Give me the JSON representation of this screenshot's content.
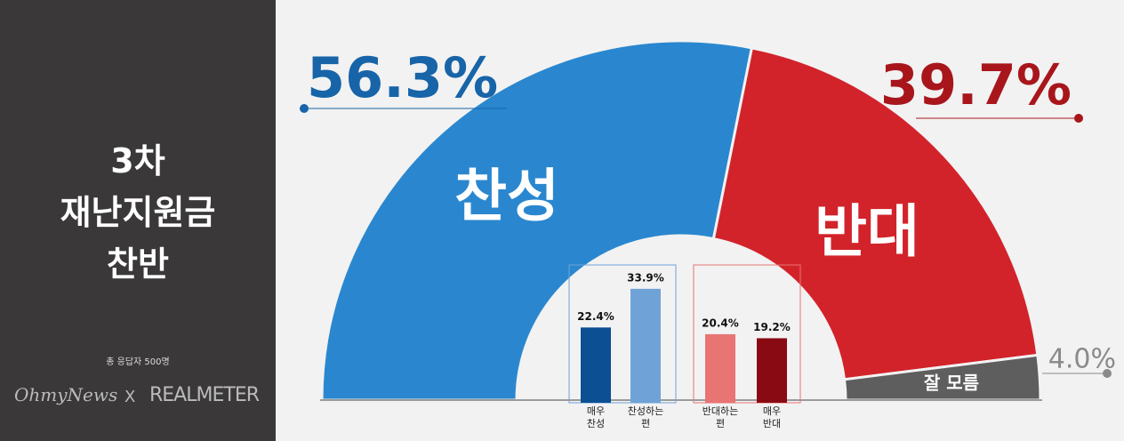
{
  "sidebar": {
    "title_lines": [
      "3차",
      "재난지원금",
      "찬반"
    ],
    "note": "총 응답자 500명",
    "logo_left": "OhmyNews",
    "logo_sep": "X",
    "logo_right": "REALMETER"
  },
  "chart_data": [
    {
      "type": "half-donut",
      "categories": [
        "찬성",
        "반대",
        "잘 모름"
      ],
      "values": [
        56.3,
        39.7,
        4.0
      ],
      "value_labels": [
        "56.3%",
        "39.7%",
        "4.0%"
      ],
      "colors": [
        "#2a87cf",
        "#d2232b",
        "#5e5e5e"
      ],
      "label_colors": [
        "#1864a8",
        "#a8161c",
        "#8a8a8a"
      ]
    },
    {
      "type": "bar",
      "categories": [
        "매우\n찬성",
        "찬성하는\n편",
        "반대하는\n편",
        "매우\n반대"
      ],
      "values": [
        22.4,
        33.9,
        20.4,
        19.2
      ],
      "value_labels": [
        "22.4%",
        "33.9%",
        "20.4%",
        "19.2%"
      ],
      "colors": [
        "#0c4f92",
        "#6fa3d8",
        "#e87474",
        "#8a0a14"
      ]
    }
  ]
}
